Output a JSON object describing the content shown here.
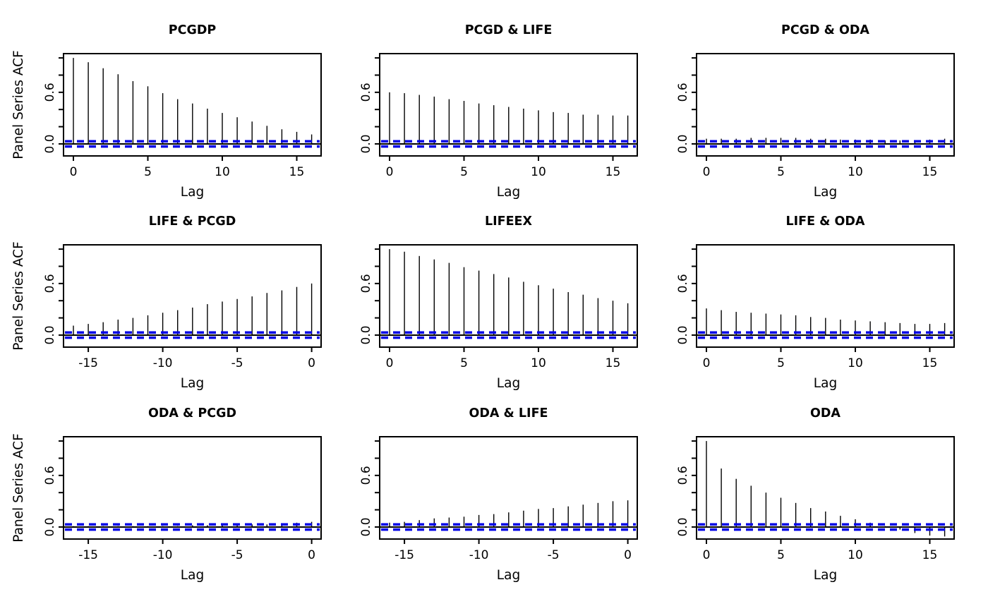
{
  "figure": {
    "background": "#ffffff",
    "axis_color": "#000000",
    "spike_color": "#000000",
    "zero_line_color": "#000000",
    "conf_band_color": "#0000e6",
    "conf_band_value": 0.03,
    "ylabel": "Panel Series ACF",
    "xlabel": "Lag",
    "y_ticks": [
      0.0,
      0.2,
      0.4,
      0.6,
      0.8,
      1.0
    ],
    "y_tick_labels_shown": [
      {
        "value": 0.0,
        "label": "0.0"
      },
      {
        "value": 0.6,
        "label": "0.6"
      }
    ],
    "ylim": [
      -0.14,
      1.05
    ],
    "grid": "off",
    "legend": "none"
  },
  "chart_data": [
    {
      "type": "bar",
      "name": "pcgdp",
      "title": "PCGDP",
      "row": 1,
      "col": 1,
      "show_ylabel": true,
      "x_ticks": {
        "values": [
          0,
          5,
          10,
          15
        ],
        "labels": [
          "0",
          "5",
          "10",
          "15"
        ]
      },
      "lags": [
        0,
        1,
        2,
        3,
        4,
        5,
        6,
        7,
        8,
        9,
        10,
        11,
        12,
        13,
        14,
        15,
        16
      ],
      "values": [
        1.0,
        0.95,
        0.88,
        0.81,
        0.73,
        0.67,
        0.59,
        0.52,
        0.47,
        0.41,
        0.36,
        0.31,
        0.26,
        0.21,
        0.17,
        0.14,
        0.11
      ]
    },
    {
      "type": "bar",
      "name": "pcgd-life",
      "title": "PCGD & LIFE",
      "row": 1,
      "col": 2,
      "show_ylabel": false,
      "x_ticks": {
        "values": [
          0,
          5,
          10,
          15
        ],
        "labels": [
          "0",
          "5",
          "10",
          "15"
        ]
      },
      "lags": [
        0,
        1,
        2,
        3,
        4,
        5,
        6,
        7,
        8,
        9,
        10,
        11,
        12,
        13,
        14,
        15,
        16
      ],
      "values": [
        0.6,
        0.59,
        0.57,
        0.55,
        0.52,
        0.5,
        0.47,
        0.45,
        0.43,
        0.41,
        0.39,
        0.37,
        0.36,
        0.34,
        0.34,
        0.33,
        0.33
      ]
    },
    {
      "type": "bar",
      "name": "pcgd-oda",
      "title": "PCGD & ODA",
      "row": 1,
      "col": 3,
      "show_ylabel": false,
      "x_ticks": {
        "values": [
          0,
          5,
          10,
          15
        ],
        "labels": [
          "0",
          "5",
          "10",
          "15"
        ]
      },
      "lags": [
        0,
        1,
        2,
        3,
        4,
        5,
        6,
        7,
        8,
        9,
        10,
        11,
        12,
        13,
        14,
        15,
        16
      ],
      "values": [
        0.06,
        0.06,
        0.06,
        0.07,
        0.07,
        0.07,
        0.07,
        0.06,
        0.06,
        0.05,
        0.05,
        0.05,
        0.04,
        0.04,
        0.04,
        0.05,
        0.06
      ]
    },
    {
      "type": "bar",
      "name": "life-pcgd",
      "title": "LIFE & PCGD",
      "row": 2,
      "col": 1,
      "show_ylabel": true,
      "x_ticks": {
        "values": [
          -15,
          -10,
          -5,
          0
        ],
        "labels": [
          "-15",
          "-10",
          "-5",
          "0"
        ]
      },
      "lags": [
        -16,
        -15,
        -14,
        -13,
        -12,
        -11,
        -10,
        -9,
        -8,
        -7,
        -6,
        -5,
        -4,
        -3,
        -2,
        -1,
        0
      ],
      "values": [
        0.11,
        0.13,
        0.15,
        0.18,
        0.2,
        0.23,
        0.26,
        0.29,
        0.32,
        0.36,
        0.39,
        0.42,
        0.45,
        0.49,
        0.52,
        0.56,
        0.6
      ]
    },
    {
      "type": "bar",
      "name": "lifeex",
      "title": "LIFEEX",
      "row": 2,
      "col": 2,
      "show_ylabel": false,
      "x_ticks": {
        "values": [
          0,
          5,
          10,
          15
        ],
        "labels": [
          "0",
          "5",
          "10",
          "15"
        ]
      },
      "lags": [
        0,
        1,
        2,
        3,
        4,
        5,
        6,
        7,
        8,
        9,
        10,
        11,
        12,
        13,
        14,
        15,
        16
      ],
      "values": [
        1.0,
        0.97,
        0.92,
        0.88,
        0.84,
        0.79,
        0.75,
        0.71,
        0.67,
        0.62,
        0.58,
        0.54,
        0.5,
        0.47,
        0.43,
        0.4,
        0.37
      ]
    },
    {
      "type": "bar",
      "name": "life-oda",
      "title": "LIFE & ODA",
      "row": 2,
      "col": 3,
      "show_ylabel": false,
      "x_ticks": {
        "values": [
          0,
          5,
          10,
          15
        ],
        "labels": [
          "0",
          "5",
          "10",
          "15"
        ]
      },
      "lags": [
        0,
        1,
        2,
        3,
        4,
        5,
        6,
        7,
        8,
        9,
        10,
        11,
        12,
        13,
        14,
        15,
        16
      ],
      "values": [
        0.31,
        0.29,
        0.27,
        0.26,
        0.25,
        0.24,
        0.23,
        0.21,
        0.2,
        0.18,
        0.17,
        0.16,
        0.15,
        0.14,
        0.13,
        0.13,
        0.14
      ]
    },
    {
      "type": "bar",
      "name": "oda-pcgd",
      "title": "ODA & PCGD",
      "row": 3,
      "col": 1,
      "show_ylabel": true,
      "x_ticks": {
        "values": [
          -15,
          -10,
          -5,
          0
        ],
        "labels": [
          "-15",
          "-10",
          "-5",
          "0"
        ]
      },
      "lags": [
        -16,
        -15,
        -14,
        -13,
        -12,
        -11,
        -10,
        -9,
        -8,
        -7,
        -6,
        -5,
        -4,
        -3,
        -2,
        -1,
        0
      ],
      "values": [
        0.01,
        0.01,
        0.01,
        0.01,
        0.01,
        0.01,
        0.01,
        0.01,
        0.02,
        0.02,
        0.02,
        0.02,
        0.03,
        0.03,
        0.04,
        0.05,
        0.06
      ]
    },
    {
      "type": "bar",
      "name": "oda-life",
      "title": "ODA & LIFE",
      "row": 3,
      "col": 2,
      "show_ylabel": false,
      "x_ticks": {
        "values": [
          -15,
          -10,
          -5,
          0
        ],
        "labels": [
          "-15",
          "-10",
          "-5",
          "0"
        ]
      },
      "lags": [
        -16,
        -15,
        -14,
        -13,
        -12,
        -11,
        -10,
        -9,
        -8,
        -7,
        -6,
        -5,
        -4,
        -3,
        -2,
        -1,
        0
      ],
      "values": [
        0.05,
        0.06,
        0.08,
        0.1,
        0.11,
        0.12,
        0.14,
        0.15,
        0.17,
        0.19,
        0.21,
        0.22,
        0.24,
        0.26,
        0.28,
        0.3,
        0.31
      ]
    },
    {
      "type": "bar",
      "name": "oda",
      "title": "ODA",
      "row": 3,
      "col": 3,
      "show_ylabel": false,
      "x_ticks": {
        "values": [
          0,
          5,
          10,
          15
        ],
        "labels": [
          "0",
          "5",
          "10",
          "15"
        ]
      },
      "lags": [
        0,
        1,
        2,
        3,
        4,
        5,
        6,
        7,
        8,
        9,
        10,
        11,
        12,
        13,
        14,
        15,
        16
      ],
      "values": [
        1.0,
        0.68,
        0.56,
        0.48,
        0.4,
        0.34,
        0.28,
        0.22,
        0.18,
        0.13,
        0.09,
        0.05,
        0.01,
        -0.03,
        -0.07,
        -0.1,
        -0.11
      ]
    }
  ]
}
